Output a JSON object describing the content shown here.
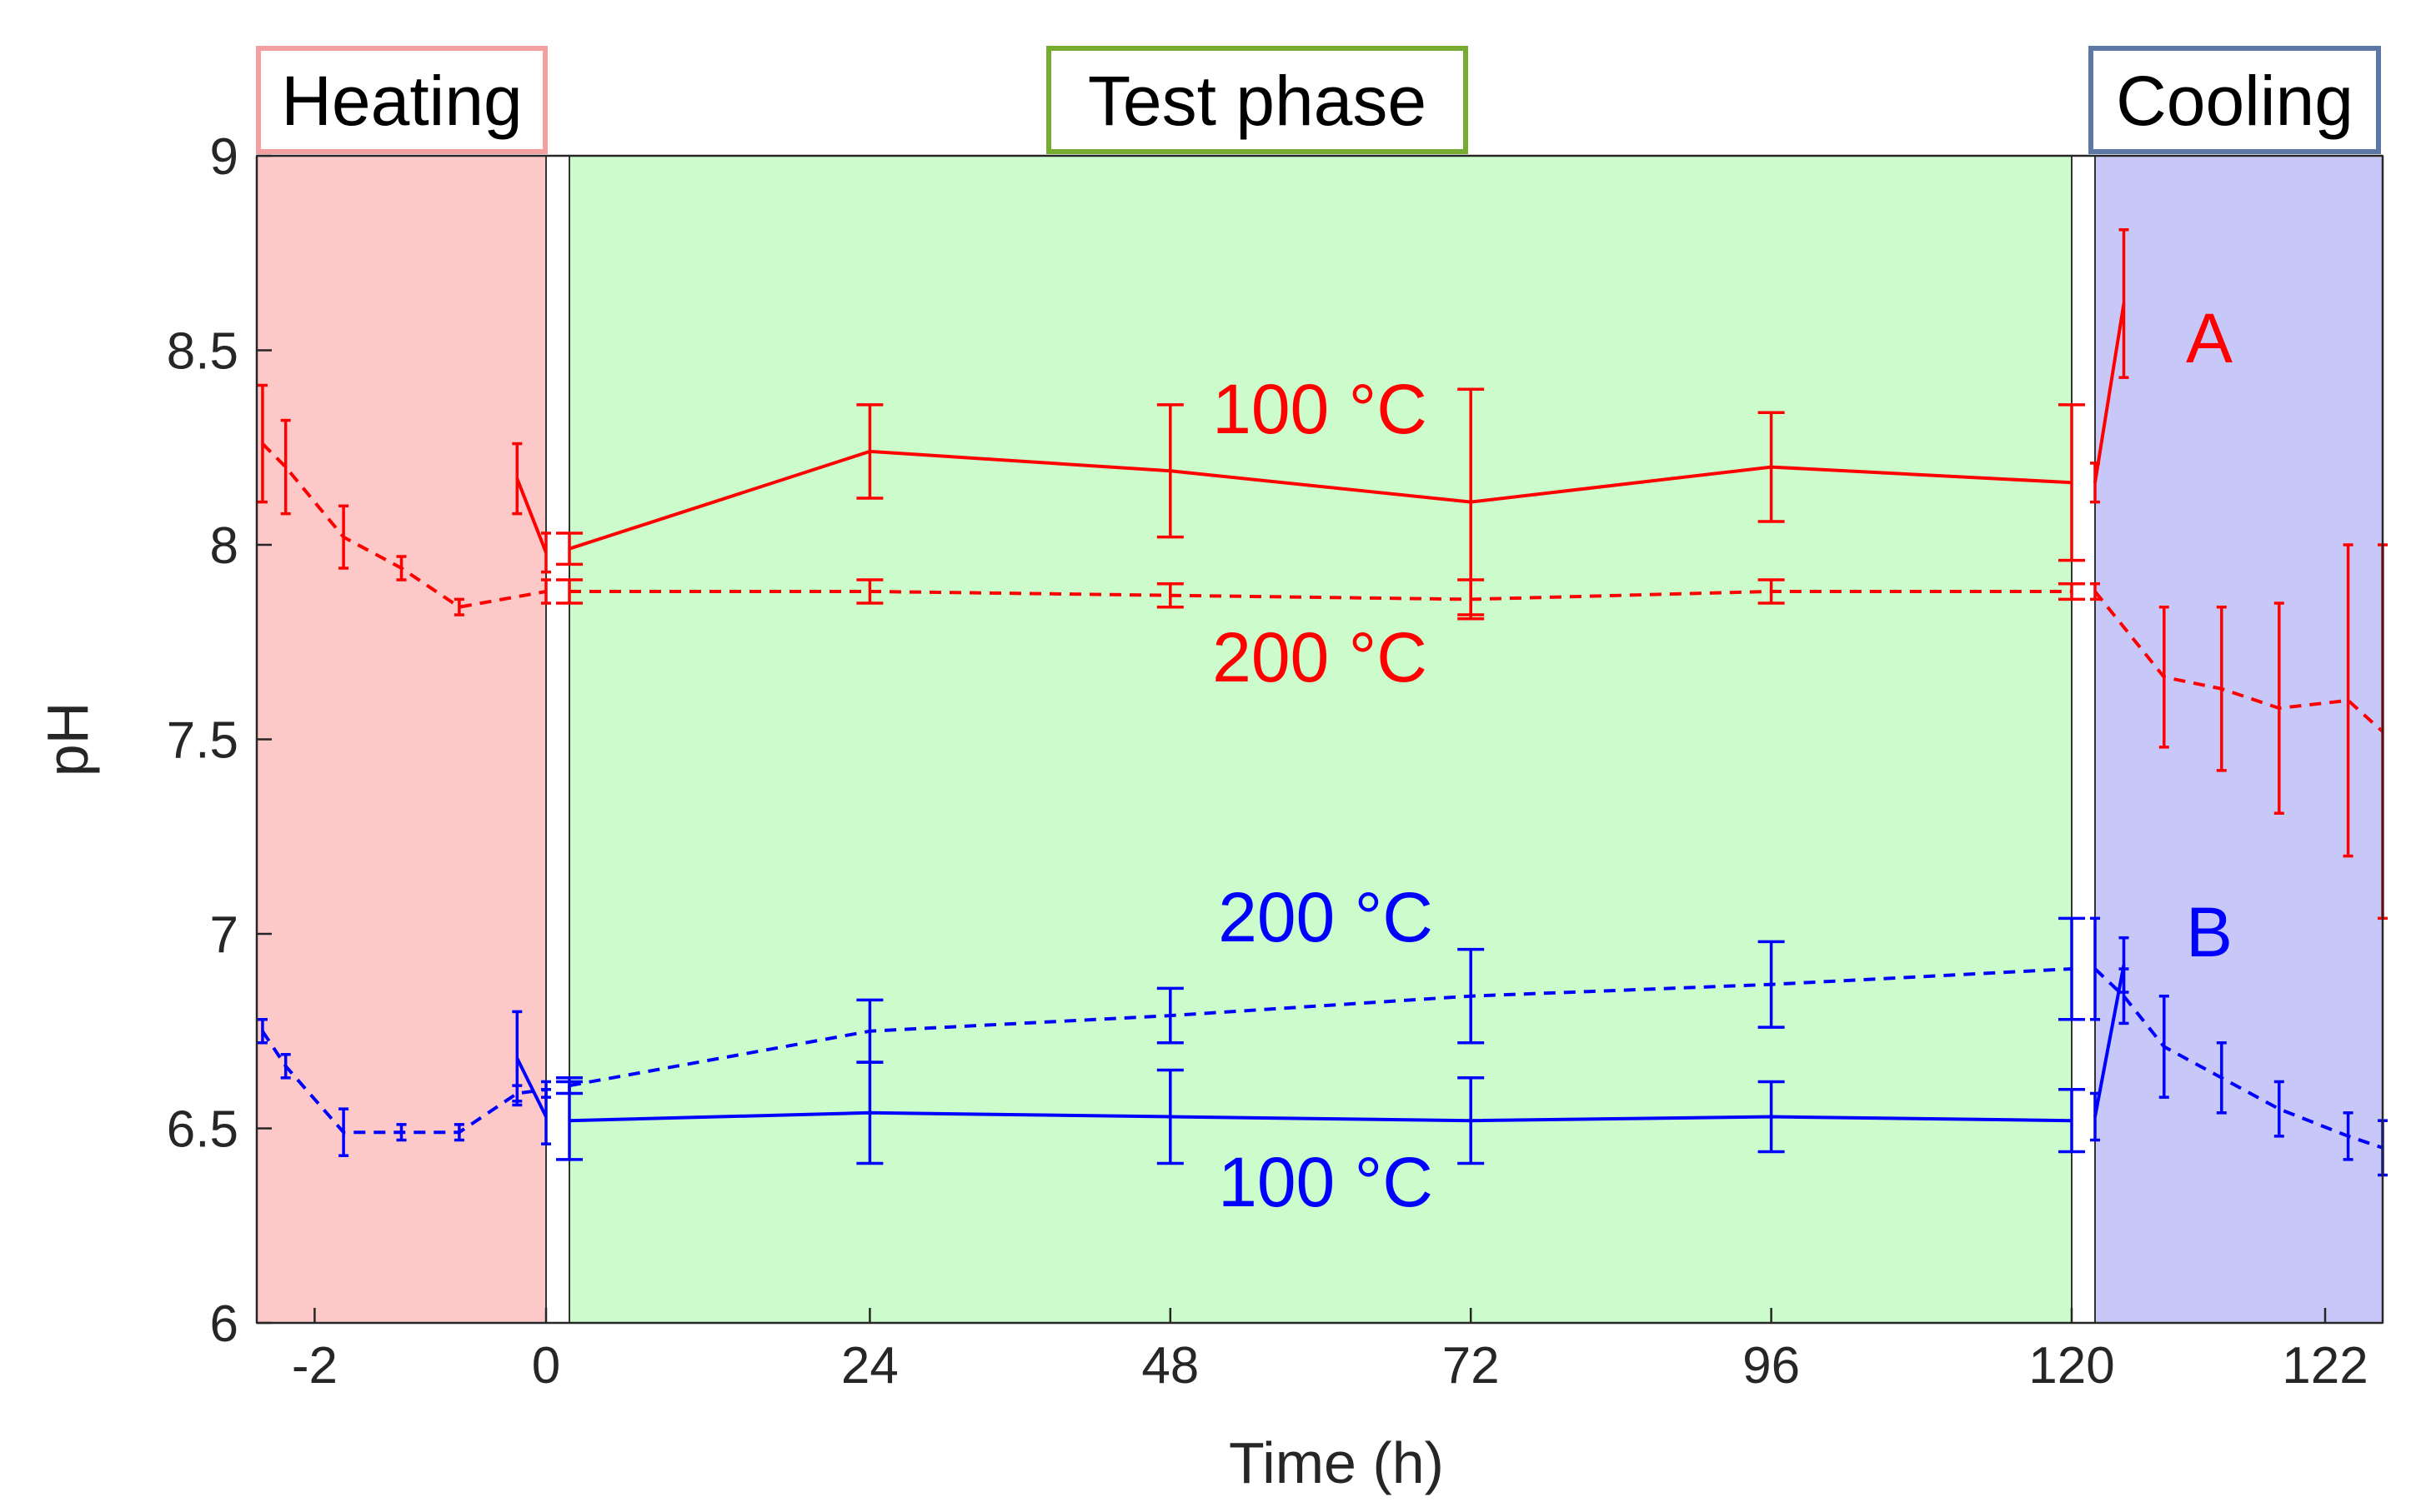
{
  "colors": {
    "heating_fill": "#fcc8c8",
    "heating_border": "#f4a0a0",
    "test_fill": "#ccfccc",
    "test_border": "#77ac30",
    "cooling_fill": "#c8c8f8",
    "cooling_border": "#5e78a6",
    "red": "#ff0000",
    "blue": "#0000ff"
  },
  "phases": {
    "heating": "Heating",
    "test": "Test phase",
    "cooling": "Cooling"
  },
  "chart_data": {
    "type": "line",
    "xlabel": "Time (h)",
    "ylabel": "pH",
    "ylim": [
      6,
      9
    ],
    "yticks": [
      "6",
      "6.5",
      "7",
      "7.5",
      "8",
      "8.5",
      "9"
    ],
    "xticks": [
      "-2",
      "0",
      "24",
      "48",
      "72",
      "96",
      "120",
      "122"
    ],
    "grid": false,
    "segments": {
      "heating_hours": [
        -2.5,
        0
      ],
      "test_hours": [
        0,
        120
      ],
      "cooling_hours": [
        120,
        122.5
      ]
    },
    "annotations": [
      {
        "text": "100 °C",
        "color": "#ff0000"
      },
      {
        "text": "200 °C",
        "color": "#ff0000"
      },
      {
        "text": "A",
        "color": "#ff0000"
      },
      {
        "text": "200 °C",
        "color": "#0000ff"
      },
      {
        "text": "B",
        "color": "#0000ff"
      },
      {
        "text": "100 °C",
        "color": "#0000ff"
      }
    ],
    "series": [
      {
        "sample": "A",
        "temperature": "100 °C",
        "color": "#ff0000",
        "style": "solid",
        "heating": {
          "x": [
            -0.25,
            0
          ],
          "y": [
            8.17,
            7.98
          ],
          "err": [
            0.09,
            0.05
          ]
        },
        "test": {
          "x": [
            0,
            24,
            48,
            72,
            96,
            120
          ],
          "y": [
            7.99,
            8.24,
            8.19,
            8.11,
            8.2,
            8.16
          ],
          "err": [
            0.04,
            0.12,
            0.17,
            0.29,
            0.14,
            0.2
          ]
        },
        "cooling": {
          "x": [
            120,
            120.25
          ],
          "y": [
            8.16,
            8.62
          ],
          "err": [
            0.05,
            0.19
          ]
        }
      },
      {
        "sample": "A",
        "temperature": "200 °C",
        "color": "#ff0000",
        "style": "dashed",
        "heating": {
          "x": [
            -2.45,
            -2.25,
            -1.75,
            -1.25,
            -0.75,
            0
          ],
          "y": [
            8.26,
            8.2,
            8.02,
            7.94,
            7.84,
            7.88
          ],
          "err": [
            0.15,
            0.12,
            0.08,
            0.03,
            0.02,
            0.03
          ]
        },
        "test": {
          "x": [
            0,
            24,
            48,
            72,
            96,
            120
          ],
          "y": [
            7.88,
            7.88,
            7.87,
            7.86,
            7.88,
            7.88
          ],
          "err": [
            0.03,
            0.03,
            0.03,
            0.05,
            0.03,
            0.02
          ]
        },
        "cooling": {
          "x": [
            120,
            120.6,
            121.1,
            121.6,
            122.2,
            122.5
          ],
          "y": [
            7.88,
            7.66,
            7.63,
            7.58,
            7.6,
            7.52
          ],
          "err": [
            0.02,
            0.18,
            0.21,
            0.27,
            0.4,
            0.48
          ]
        }
      },
      {
        "sample": "B",
        "temperature": "200 °C",
        "color": "#0000ff",
        "style": "dashed",
        "heating": {
          "x": [
            -2.45,
            -2.25,
            -1.75,
            -1.25,
            -0.75,
            -0.25,
            0
          ],
          "y": [
            6.75,
            6.66,
            6.49,
            6.49,
            6.49,
            6.59,
            6.6
          ],
          "err": [
            0.03,
            0.03,
            0.06,
            0.02,
            0.02,
            0.02,
            0.02
          ]
        },
        "test": {
          "x": [
            0,
            24,
            48,
            72,
            96,
            120
          ],
          "y": [
            6.61,
            6.75,
            6.79,
            6.84,
            6.87,
            6.91
          ],
          "err": [
            0.02,
            0.08,
            0.07,
            0.12,
            0.11,
            0.13
          ]
        },
        "cooling": {
          "x": [
            120,
            120.25,
            120.6,
            121.1,
            121.6,
            122.2,
            122.5
          ],
          "y": [
            6.91,
            6.84,
            6.71,
            6.63,
            6.55,
            6.48,
            6.45
          ],
          "err": [
            0.13,
            0.07,
            0.13,
            0.09,
            0.07,
            0.06,
            0.07
          ]
        }
      },
      {
        "sample": "B",
        "temperature": "100 °C",
        "color": "#0000ff",
        "style": "solid",
        "heating": {
          "x": [
            -0.25,
            0
          ],
          "y": [
            6.68,
            6.53
          ],
          "err": [
            0.12,
            0.07
          ]
        },
        "test": {
          "x": [
            0,
            24,
            48,
            72,
            96,
            120
          ],
          "y": [
            6.52,
            6.54,
            6.53,
            6.52,
            6.53,
            6.52
          ],
          "err": [
            0.1,
            0.13,
            0.12,
            0.11,
            0.09,
            0.08
          ]
        },
        "cooling": {
          "x": [
            120,
            120.25
          ],
          "y": [
            6.53,
            6.92
          ],
          "err": [
            0.06,
            0.07
          ]
        }
      }
    ]
  }
}
